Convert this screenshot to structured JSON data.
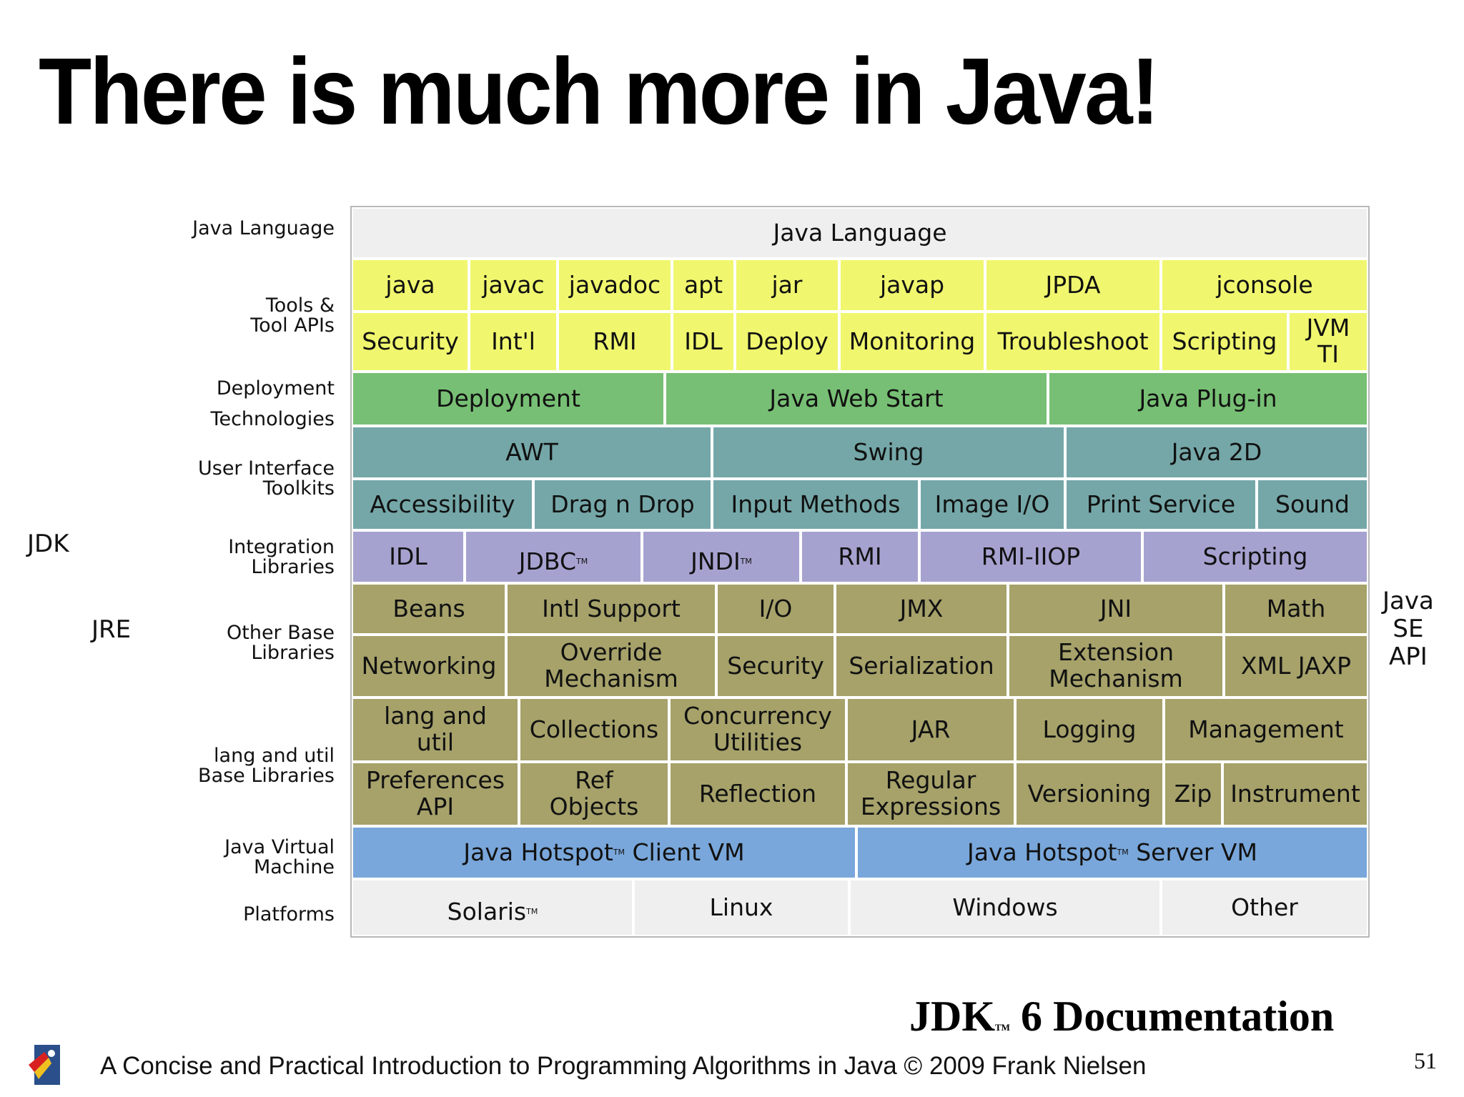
{
  "title": "There is much more in Java!",
  "side_labels": {
    "jdk": "JDK",
    "jre": "JRE",
    "api": "Java\nSE\nAPI"
  },
  "row_labels": {
    "language": "Java Language",
    "tools": "Tools &\nTool APIs",
    "deployment": "Deployment\nTechnologies",
    "ui": "User Interface\nToolkits",
    "integration": "Integration\nLibraries",
    "other": "Other Base\nLibraries",
    "langutil": "lang and util\nBase Libraries",
    "jvm": "Java Virtual\nMachine",
    "platforms": "Platforms"
  },
  "cells": {
    "language": "Java Language",
    "tools_row1": [
      "java",
      "javac",
      "javadoc",
      "apt",
      "jar",
      "javap",
      "JPDA",
      "jconsole"
    ],
    "tools_row2": [
      "Security",
      "Int'l",
      "RMI",
      "IDL",
      "Deploy",
      "Monitoring",
      "Troubleshoot",
      "Scripting",
      "JVM\nTI"
    ],
    "deployment": [
      "Deployment",
      "Java Web Start",
      "Java Plug-in"
    ],
    "ui_row1": [
      "AWT",
      "Swing",
      "Java 2D"
    ],
    "ui_row2": [
      "Accessibility",
      "Drag n Drop",
      "Input Methods",
      "Image I/O",
      "Print Service",
      "Sound"
    ],
    "integration": [
      "IDL",
      "JDBC",
      "JNDI",
      "RMI",
      "RMI-IIOP",
      "Scripting"
    ],
    "other_row1": [
      "Beans",
      "Intl Support",
      "I/O",
      "JMX",
      "JNI",
      "Math"
    ],
    "other_row2": [
      "Networking",
      "Override\nMechanism",
      "Security",
      "Serialization",
      "Extension\nMechanism",
      "XML JAXP"
    ],
    "lu_row1": [
      "lang and\nutil",
      "Collections",
      "Concurrency\nUtilities",
      "JAR",
      "Logging",
      "Management"
    ],
    "lu_row2": [
      "Preferences\nAPI",
      "Ref\nObjects",
      "Reflection",
      "Regular\nExpressions",
      "Versioning",
      "Zip",
      "Instrument"
    ],
    "jvm": [
      "Java Hotspot",
      "Client VM",
      "Java Hotspot",
      "Server VM"
    ],
    "platforms": [
      "Solaris",
      "Linux",
      "Windows",
      "Other"
    ]
  },
  "tm": "TM",
  "caption": {
    "main": "JDK",
    "rest": " 6 Documentation"
  },
  "footer": "A Concise and Practical Introduction to Programming Algorithms in Java  © 2009 Frank Nielsen",
  "page_number": "51",
  "colors": {
    "language": "#efefef",
    "tools": "#f0f76e",
    "deployment": "#77bf74",
    "ui": "#75a7a8",
    "integration": "#a6a2d0",
    "base": "#a6a26a",
    "jvm": "#79a7db",
    "platforms": "#efefef"
  }
}
